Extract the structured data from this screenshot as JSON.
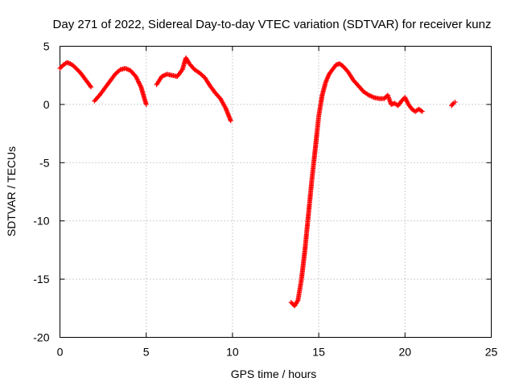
{
  "chart_data": {
    "type": "scatter",
    "title": "Day 271 of 2022, Sidereal Day-to-day VTEC variation (SDTVAR) for receiver kunz",
    "xlabel": "GPS time / hours",
    "ylabel": "SDTVAR / TECUs",
    "xlim": [
      0,
      25
    ],
    "ylim": [
      -20,
      5
    ],
    "xticks": [
      "0",
      "5",
      "10",
      "15",
      "20",
      "25"
    ],
    "yticks": [
      "5",
      "0",
      "-5",
      "-10",
      "-15",
      "-20"
    ],
    "xtick_values": [
      0,
      5,
      10,
      15,
      20,
      25
    ],
    "ytick_values": [
      5,
      0,
      -5,
      -10,
      -15,
      -20
    ],
    "grid": true,
    "marker": "plus",
    "color": "#ff0000",
    "series": [
      {
        "name": "SDTVAR",
        "segments": [
          {
            "x": [
              0.0,
              0.2,
              0.4,
              0.6,
              0.8,
              1.0,
              1.2,
              1.4,
              1.6,
              1.8
            ],
            "y": [
              3.1,
              3.4,
              3.6,
              3.5,
              3.3,
              3.0,
              2.7,
              2.3,
              1.9,
              1.5
            ]
          },
          {
            "x": [
              2.0,
              2.3,
              2.6,
              2.9,
              3.2,
              3.5,
              3.8,
              4.1,
              4.4,
              4.7,
              5.0
            ],
            "y": [
              0.3,
              0.8,
              1.4,
              2.0,
              2.6,
              3.0,
              3.1,
              2.9,
              2.4,
              1.5,
              0.0
            ]
          },
          {
            "x": [
              5.6,
              5.9,
              6.2,
              6.5,
              6.8,
              7.1,
              7.3,
              7.5,
              7.8,
              8.1,
              8.4,
              8.7,
              9.0,
              9.3,
              9.6,
              9.9
            ],
            "y": [
              1.7,
              2.4,
              2.6,
              2.5,
              2.4,
              3.0,
              4.0,
              3.5,
              3.0,
              2.7,
              2.3,
              1.6,
              1.0,
              0.5,
              -0.3,
              -1.4
            ]
          },
          {
            "x": [
              13.4,
              13.6,
              13.8,
              14.0,
              14.2,
              14.4,
              14.6,
              14.8,
              15.0,
              15.2,
              15.4,
              15.6,
              15.8,
              16.0,
              16.2,
              16.4,
              16.7,
              17.0,
              17.3,
              17.6,
              17.9,
              18.2,
              18.5,
              18.8,
              19.0,
              19.2,
              19.4,
              19.6,
              19.8,
              20.0,
              20.2,
              20.4,
              20.6,
              20.8,
              21.0
            ],
            "y": [
              -17.0,
              -17.3,
              -16.8,
              -15.0,
              -12.5,
              -9.5,
              -6.5,
              -3.8,
              -1.0,
              0.8,
              1.9,
              2.6,
              3.0,
              3.4,
              3.5,
              3.3,
              2.8,
              2.1,
              1.6,
              1.1,
              0.8,
              0.6,
              0.5,
              0.5,
              0.8,
              0.0,
              0.1,
              -0.1,
              0.3,
              0.6,
              0.0,
              -0.4,
              -0.6,
              -0.4,
              -0.6
            ]
          },
          {
            "x": [
              22.7,
              22.8,
              22.9
            ],
            "y": [
              -0.1,
              0.1,
              0.2
            ]
          }
        ]
      }
    ]
  }
}
